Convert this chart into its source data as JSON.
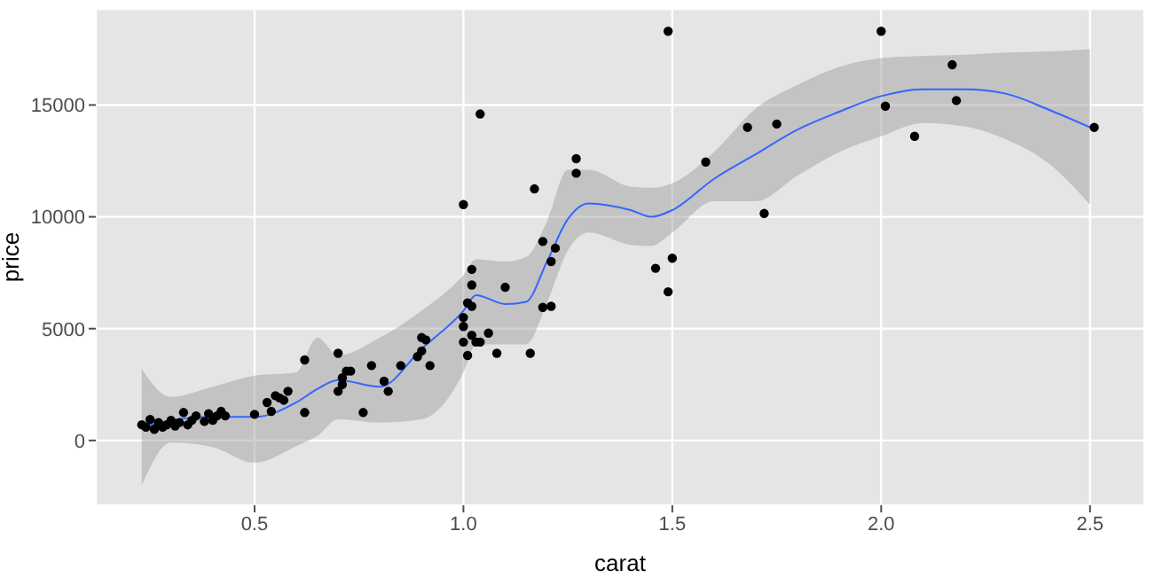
{
  "chart_data": {
    "type": "scatter",
    "xlabel": "carat",
    "ylabel": "price",
    "xlim": [
      0.12,
      2.63
    ],
    "ylim": [
      -2900,
      19300
    ],
    "xticks": [
      0.5,
      {
        "value": 1,
        "label": "1.0"
      },
      1.5,
      {
        "value": 2,
        "label": "2.0"
      },
      2.5
    ],
    "yticks": [
      0,
      5000,
      10000,
      15000
    ],
    "grid": true,
    "marker": "circle",
    "series": [
      {
        "color": "#000000",
        "x": [
          0.23,
          0.24,
          0.25,
          0.26,
          0.27,
          0.28,
          0.29,
          0.3,
          0.31,
          0.32,
          0.33,
          0.34,
          0.35,
          0.36,
          0.38,
          0.39,
          0.4,
          0.41,
          0.42,
          0.43,
          0.5,
          0.53,
          0.54,
          0.55,
          0.56,
          0.57,
          0.58,
          0.62,
          0.62,
          0.7,
          0.7,
          0.71,
          0.71,
          0.72,
          0.73,
          0.76,
          0.78,
          0.81,
          0.82,
          0.85,
          0.89,
          0.9,
          0.9,
          0.91,
          0.92,
          1.0,
          1.0,
          1.0,
          1.0,
          1.01,
          1.01,
          1.02,
          1.02,
          1.02,
          1.02,
          1.03,
          1.04,
          1.04,
          1.06,
          1.08,
          1.1,
          1.16,
          1.17,
          1.19,
          1.19,
          1.21,
          1.21,
          1.22,
          1.27,
          1.27,
          1.46,
          1.49,
          1.49,
          1.5,
          1.58,
          1.68,
          1.72,
          1.75,
          2.0,
          2.01,
          2.08,
          2.17,
          2.18,
          2.51
        ],
        "values": [
          700,
          600,
          940,
          500,
          800,
          600,
          700,
          900,
          650,
          800,
          1250,
          700,
          900,
          1100,
          850,
          1200,
          900,
          1100,
          1300,
          1100,
          1170,
          1700,
          1300,
          2000,
          1900,
          1800,
          2200,
          3600,
          1250,
          3900,
          2200,
          2500,
          2800,
          3100,
          3100,
          1250,
          3350,
          2650,
          2200,
          3350,
          3750,
          4600,
          4000,
          4500,
          3350,
          10550,
          5100,
          5500,
          4400,
          6150,
          3800,
          6000,
          6950,
          7650,
          4700,
          4400,
          4400,
          14600,
          4800,
          3900,
          6850,
          3900,
          11250,
          5950,
          8900,
          6000,
          8000,
          8600,
          11950,
          12600,
          7700,
          6650,
          18300,
          8150,
          12450,
          14000,
          10150,
          14150,
          18300,
          14950,
          13600,
          16800,
          15200,
          14000
        ]
      },
      {
        "type": "line",
        "marker": "none",
        "color": "#3366ff",
        "x": [
          0.23,
          0.3,
          0.4,
          0.5,
          0.6,
          0.65,
          0.7,
          0.8,
          0.9,
          1.0,
          1.03,
          1.1,
          1.15,
          1.2,
          1.25,
          1.3,
          1.4,
          1.45,
          1.5,
          1.6,
          1.7,
          1.8,
          1.9,
          2.0,
          2.1,
          2.2,
          2.3,
          2.4,
          2.5
        ],
        "values": [
          600,
          900,
          1050,
          1050,
          1700,
          2300,
          2700,
          2400,
          4100,
          5800,
          6500,
          6100,
          6200,
          8000,
          9900,
          10600,
          10300,
          10000,
          10300,
          11700,
          12800,
          13900,
          14700,
          15400,
          15700,
          15700,
          15500,
          14800,
          14000
        ],
        "lower": [
          -2000,
          -100,
          -300,
          -1000,
          -250,
          200,
          950,
          800,
          950,
          3050,
          4300,
          4300,
          4300,
          6150,
          8500,
          9300,
          8750,
          8700,
          9300,
          10700,
          10700,
          11850,
          12900,
          13600,
          14200,
          14050,
          13450,
          12400,
          10550
        ],
        "upper": [
          3200,
          1950,
          2400,
          2900,
          3050,
          4600,
          3800,
          4600,
          5800,
          7400,
          8100,
          8000,
          8200,
          9800,
          12100,
          12100,
          11350,
          11300,
          11500,
          12900,
          14850,
          15900,
          16700,
          17100,
          17200,
          17250,
          17350,
          17400,
          17500
        ]
      }
    ]
  }
}
